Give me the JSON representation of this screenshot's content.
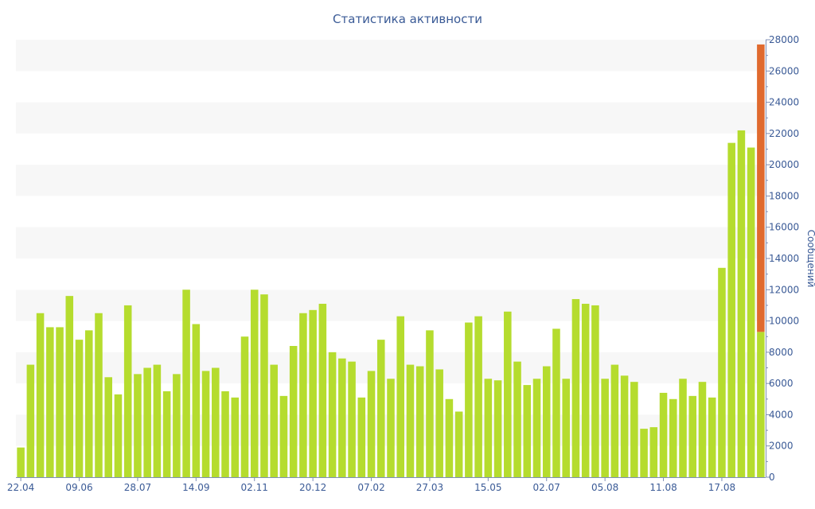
{
  "colors": {
    "bar": "#b5dc2e",
    "highlight": "#e06a2e",
    "axis_text": "#3a5a96",
    "band": "#f7f7f7",
    "axis_line": "#7f8fb5"
  },
  "chart_data": {
    "type": "bar",
    "title": "Статистика активности",
    "ylabel": "Сообщений",
    "ylim": [
      0,
      28000
    ],
    "y_ticks": [
      0,
      2000,
      4000,
      6000,
      8000,
      10000,
      12000,
      14000,
      16000,
      18000,
      20000,
      22000,
      24000,
      26000,
      28000
    ],
    "x_tick_labels": [
      "22.04",
      "09.06",
      "28.07",
      "14.09",
      "02.11",
      "20.12",
      "07.02",
      "27.03",
      "15.05",
      "02.07",
      "05.08",
      "11.08",
      "17.08"
    ],
    "grid": "alternating horizontal bands",
    "y_axis_side": "right",
    "series": [
      {
        "values": [
          1900,
          7200,
          10500,
          9600,
          9600,
          11600,
          8800,
          9400,
          10500,
          6400,
          5300,
          11000,
          6600,
          7000,
          7200,
          5500,
          6600,
          12000,
          9800,
          6800,
          7000,
          5500,
          5100,
          9000,
          12000,
          11700,
          7200,
          5200,
          8400,
          10500,
          10700,
          11100,
          8000,
          7600,
          7400,
          5100,
          6800,
          8800,
          6300,
          10300,
          7200,
          7100,
          9400,
          6900,
          5000,
          4200,
          9900,
          10300,
          6300,
          6200,
          10600,
          7400,
          5900,
          6300,
          7100,
          9500,
          6300,
          11400,
          11100,
          11000,
          6300,
          7200,
          6500,
          6100,
          3100,
          3200,
          5400,
          5000,
          6300,
          5200,
          6100,
          5100,
          13400,
          21400,
          22200,
          21100,
          27700
        ],
        "highlight_index": 76,
        "highlight_base": 9300
      }
    ]
  }
}
